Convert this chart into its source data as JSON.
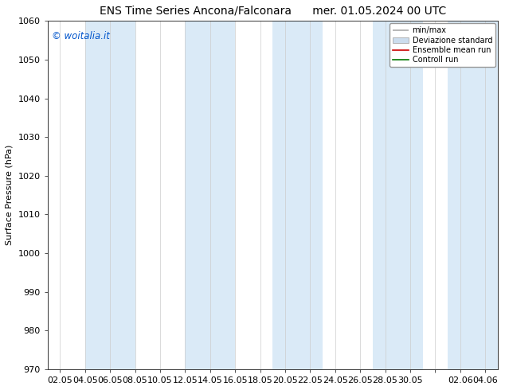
{
  "title_left": "ENS Time Series Ancona/Falconara",
  "title_right": "mer. 01.05.2024 00 UTC",
  "ylabel": "Surface Pressure (hPa)",
  "ylim": [
    970,
    1060
  ],
  "yticks": [
    970,
    980,
    990,
    1000,
    1010,
    1020,
    1030,
    1040,
    1050,
    1060
  ],
  "xtick_labels": [
    "02.05",
    "04.05",
    "06.05",
    "08.05",
    "10.05",
    "12.05",
    "14.05",
    "16.05",
    "18.05",
    "20.05",
    "22.05",
    "24.05",
    "26.05",
    "28.05",
    "30.05",
    "",
    "02.06",
    "04.06"
  ],
  "watermark": "© woitalia.it",
  "watermark_color": "#0055cc",
  "bg_color": "#ffffff",
  "band_color": "#daeaf7",
  "legend_entries": [
    "min/max",
    "Deviazione standard",
    "Ensemble mean run",
    "Controll run"
  ],
  "legend_line_colors": [
    "#aaaaaa",
    "#cccccc",
    "#cc0000",
    "#007700"
  ],
  "title_fontsize": 10,
  "axis_fontsize": 8,
  "tick_fontsize": 8,
  "band_indices": [
    1,
    2,
    5,
    6,
    9,
    10,
    13,
    14
  ],
  "n_xticks": 18
}
